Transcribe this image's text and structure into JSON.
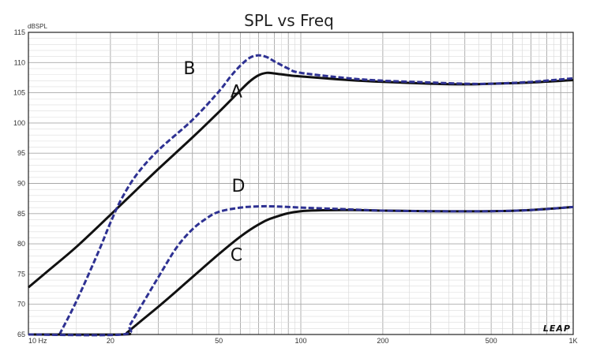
{
  "chart_data": {
    "type": "line",
    "title": "SPL vs Freq",
    "ylabel": "dBSPL",
    "xlabel": "",
    "x_scale": "log",
    "xlim": [
      10,
      1000
    ],
    "ylim": [
      65,
      115
    ],
    "grid": true,
    "x_ticks": [
      {
        "value": 10,
        "label": "10 Hz"
      },
      {
        "value": 20,
        "label": "20"
      },
      {
        "value": 50,
        "label": "50"
      },
      {
        "value": 100,
        "label": "100"
      },
      {
        "value": 200,
        "label": "200"
      },
      {
        "value": 500,
        "label": "500"
      },
      {
        "value": 1000,
        "label": "1K"
      }
    ],
    "y_ticks": [
      {
        "value": 65,
        "label": "65"
      },
      {
        "value": 70,
        "label": "70"
      },
      {
        "value": 75,
        "label": "75"
      },
      {
        "value": 80,
        "label": "80"
      },
      {
        "value": 85,
        "label": "85"
      },
      {
        "value": 90,
        "label": "90"
      },
      {
        "value": 95,
        "label": "95"
      },
      {
        "value": 100,
        "label": "100"
      },
      {
        "value": 105,
        "label": "105"
      },
      {
        "value": 110,
        "label": "110"
      },
      {
        "value": 115,
        "label": "115"
      }
    ],
    "series": [
      {
        "name": "A",
        "color": "#111111",
        "dash": "solid",
        "label_at": {
          "x": 58,
          "y": 104.2
        },
        "points": [
          [
            10,
            72.8
          ],
          [
            12,
            75.8
          ],
          [
            15,
            79.5
          ],
          [
            20,
            84.8
          ],
          [
            25,
            89
          ],
          [
            30,
            92.4
          ],
          [
            40,
            97.6
          ],
          [
            50,
            101.8
          ],
          [
            60,
            105.4
          ],
          [
            65,
            106.9
          ],
          [
            70,
            107.9
          ],
          [
            75,
            108.3
          ],
          [
            80,
            108.2
          ],
          [
            90,
            107.9
          ],
          [
            100,
            107.7
          ],
          [
            150,
            107.1
          ],
          [
            200,
            106.8
          ],
          [
            300,
            106.5
          ],
          [
            400,
            106.4
          ],
          [
            500,
            106.5
          ],
          [
            700,
            106.7
          ],
          [
            1000,
            107.1
          ]
        ]
      },
      {
        "name": "B",
        "color": "#2e3192",
        "dash": "dashed",
        "label_at": {
          "x": 39,
          "y": 108.1
        },
        "points": [
          [
            13,
            65
          ],
          [
            15,
            70.5
          ],
          [
            18,
            78.5
          ],
          [
            20,
            83.5
          ],
          [
            22,
            87.5
          ],
          [
            25,
            91.5
          ],
          [
            30,
            95.5
          ],
          [
            40,
            100.5
          ],
          [
            50,
            105.2
          ],
          [
            55,
            107.6
          ],
          [
            60,
            109.5
          ],
          [
            65,
            110.8
          ],
          [
            70,
            111.2
          ],
          [
            75,
            110.9
          ],
          [
            80,
            110.2
          ],
          [
            90,
            109
          ],
          [
            100,
            108.3
          ],
          [
            150,
            107.4
          ],
          [
            200,
            107
          ],
          [
            300,
            106.7
          ],
          [
            400,
            106.5
          ],
          [
            500,
            106.5
          ],
          [
            700,
            106.8
          ],
          [
            1000,
            107.4
          ]
        ]
      },
      {
        "name": "C",
        "color": "#111111",
        "dash": "solid",
        "label_at": {
          "x": 58,
          "y": 77.2
        },
        "points": [
          [
            10,
            65
          ],
          [
            22,
            65
          ],
          [
            23,
            65.3
          ],
          [
            24,
            66
          ],
          [
            26,
            67.3
          ],
          [
            30,
            69.6
          ],
          [
            35,
            72.2
          ],
          [
            40,
            74.5
          ],
          [
            50,
            78.3
          ],
          [
            60,
            81.2
          ],
          [
            70,
            83.2
          ],
          [
            80,
            84.4
          ],
          [
            100,
            85.4
          ],
          [
            150,
            85.6
          ],
          [
            200,
            85.5
          ],
          [
            300,
            85.4
          ],
          [
            500,
            85.4
          ],
          [
            700,
            85.6
          ],
          [
            1000,
            86.1
          ]
        ]
      },
      {
        "name": "D",
        "color": "#2e3192",
        "dash": "dashed",
        "label_at": {
          "x": 59,
          "y": 88.6
        },
        "points": [
          [
            10,
            65
          ],
          [
            22,
            65
          ],
          [
            23.5,
            66.5
          ],
          [
            25,
            68.5
          ],
          [
            30,
            74.5
          ],
          [
            35,
            79.4
          ],
          [
            40,
            82.4
          ],
          [
            45,
            84.2
          ],
          [
            50,
            85.3
          ],
          [
            60,
            86
          ],
          [
            70,
            86.2
          ],
          [
            80,
            86.2
          ],
          [
            100,
            86
          ],
          [
            150,
            85.7
          ],
          [
            200,
            85.5
          ],
          [
            300,
            85.4
          ],
          [
            500,
            85.4
          ],
          [
            700,
            85.6
          ],
          [
            1000,
            86.1
          ]
        ]
      }
    ],
    "logo_text": "LEAP"
  }
}
